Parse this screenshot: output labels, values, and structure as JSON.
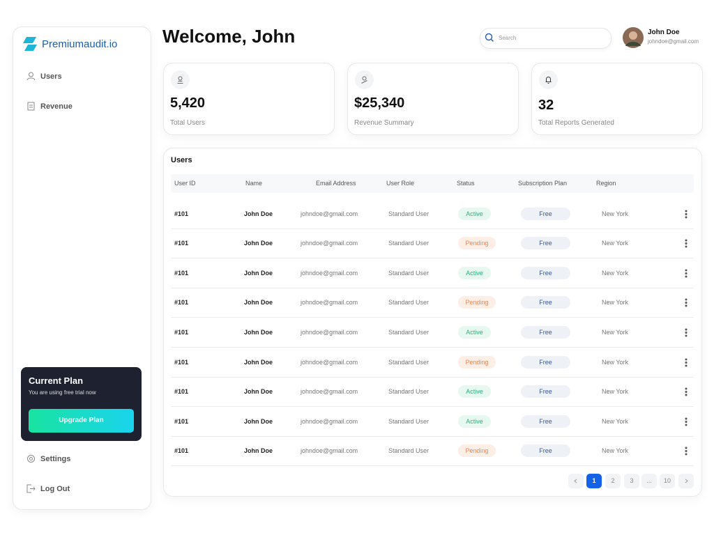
{
  "sidebar": {
    "brand": "Premiumaudit.io",
    "nav": [
      "Users",
      "Revenue"
    ],
    "plan": {
      "title": "Current Plan",
      "subtitle": "You are using free trial now",
      "button": "Upgrade Plan"
    },
    "bottom_nav": [
      "Settings",
      "Log Out"
    ]
  },
  "header": {
    "title": "Welcome, John",
    "search_placeholder": "Search",
    "user": {
      "name": "John Doe",
      "email": "johndoe@gmail.com"
    }
  },
  "stats": [
    {
      "value": "5,420",
      "label": "Total Users"
    },
    {
      "value": "$25,340",
      "label": "Revenue Summary"
    },
    {
      "value": "32",
      "label": "Total Reports Generated"
    }
  ],
  "table": {
    "title": "Users",
    "columns": [
      "User ID",
      "Name",
      "Email Address",
      "User Role",
      "Status",
      "Subscription Plan",
      "Region"
    ],
    "rows": [
      [
        "#101",
        "John Doe",
        "johndoe@gmail.com",
        "Standard User",
        "Active",
        "Free",
        "New York"
      ],
      [
        "#101",
        "John Doe",
        "johndoe@gmail.com",
        "Standard User",
        "Pending",
        "Free",
        "New York"
      ],
      [
        "#101",
        "John Doe",
        "johndoe@gmail.com",
        "Standard User",
        "Active",
        "Free",
        "New York"
      ],
      [
        "#101",
        "John Doe",
        "johndoe@gmail.com",
        "Standard User",
        "Pending",
        "Free",
        "New York"
      ],
      [
        "#101",
        "John Doe",
        "johndoe@gmail.com",
        "Standard User",
        "Active",
        "Free",
        "New York"
      ],
      [
        "#101",
        "John Doe",
        "johndoe@gmail.com",
        "Standard User",
        "Pending",
        "Free",
        "New York"
      ],
      [
        "#101",
        "John Doe",
        "johndoe@gmail.com",
        "Standard User",
        "Active",
        "Free",
        "New York"
      ],
      [
        "#101",
        "John Doe",
        "johndoe@gmail.com",
        "Standard User",
        "Active",
        "Free",
        "New York"
      ],
      [
        "#101",
        "John Doe",
        "johndoe@gmail.com",
        "Standard User",
        "Pending",
        "Free",
        "New York"
      ]
    ],
    "status_colors": {
      "Active": [
        "#e6f8f0",
        "#2fb37f"
      ],
      "Pending": [
        "#fdeee6",
        "#ee8a5e"
      ]
    }
  },
  "pagination": {
    "pages": [
      "1",
      "2",
      "3",
      "...",
      "10"
    ],
    "current": 0
  }
}
